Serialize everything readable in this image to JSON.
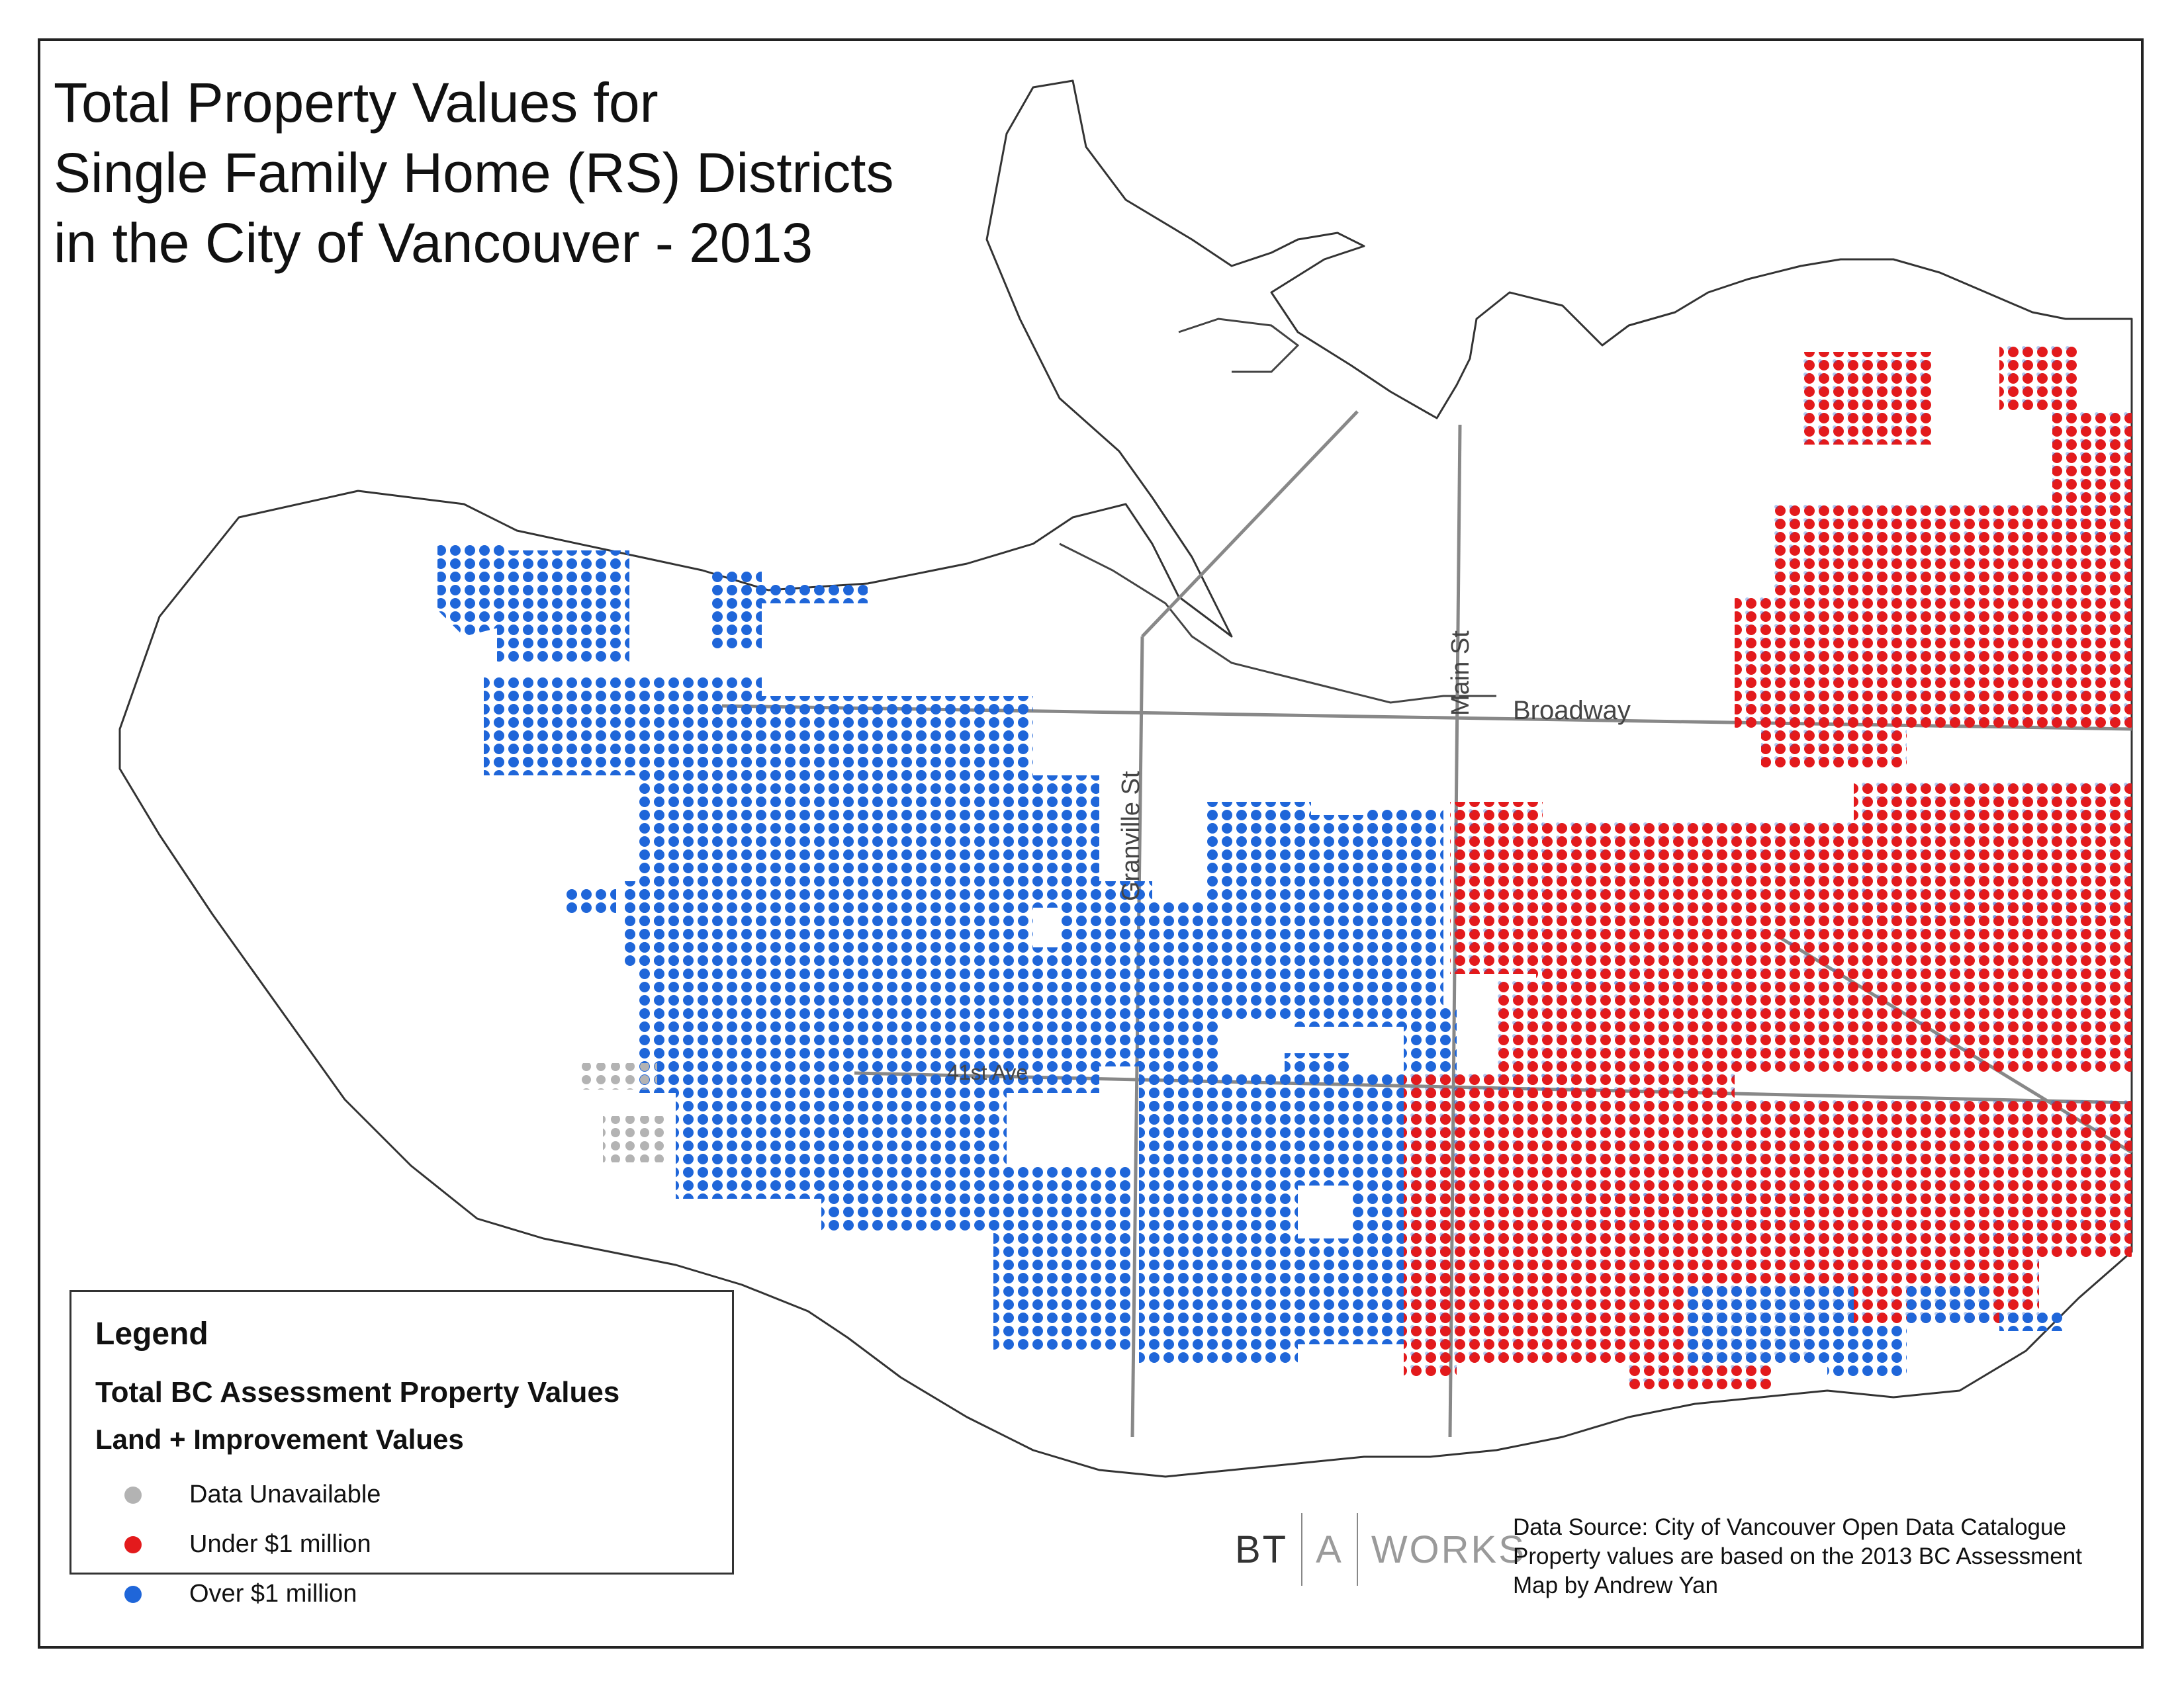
{
  "title": {
    "line1": "Total Property Values for",
    "line2": "Single Family Home (RS) Districts",
    "line3": "in the City of Vancouver - 2013"
  },
  "streets": {
    "main": "Main St",
    "granville": "Granville St",
    "broadway": "Broadway",
    "ave41": "41st Ave"
  },
  "legend": {
    "title": "Legend",
    "heading": "Total BC Assessment Property Values",
    "subheading": "Land + Improvement Values",
    "items": [
      {
        "label": "Data Unavailable",
        "color": "#b3b3b3"
      },
      {
        "label": "Under $1 million",
        "color": "#e31a1c"
      },
      {
        "label": "Over $1 million",
        "color": "#1f66d9"
      }
    ]
  },
  "logo": {
    "part1": "BT",
    "part2": "A",
    "part3": "WORKS",
    "color1": "#333333",
    "color2": "#9a9a9a"
  },
  "source": {
    "line1": "Data Source: City of Vancouver Open Data Catalogue",
    "line2": "Property values are based on the 2013 BC Assessment",
    "line3": "Map by Andrew Yan"
  },
  "colors": {
    "under": "#e31a1c",
    "over": "#1f66d9",
    "unavailable": "#b3b3b3",
    "road": "#888888",
    "outline": "#333333"
  }
}
